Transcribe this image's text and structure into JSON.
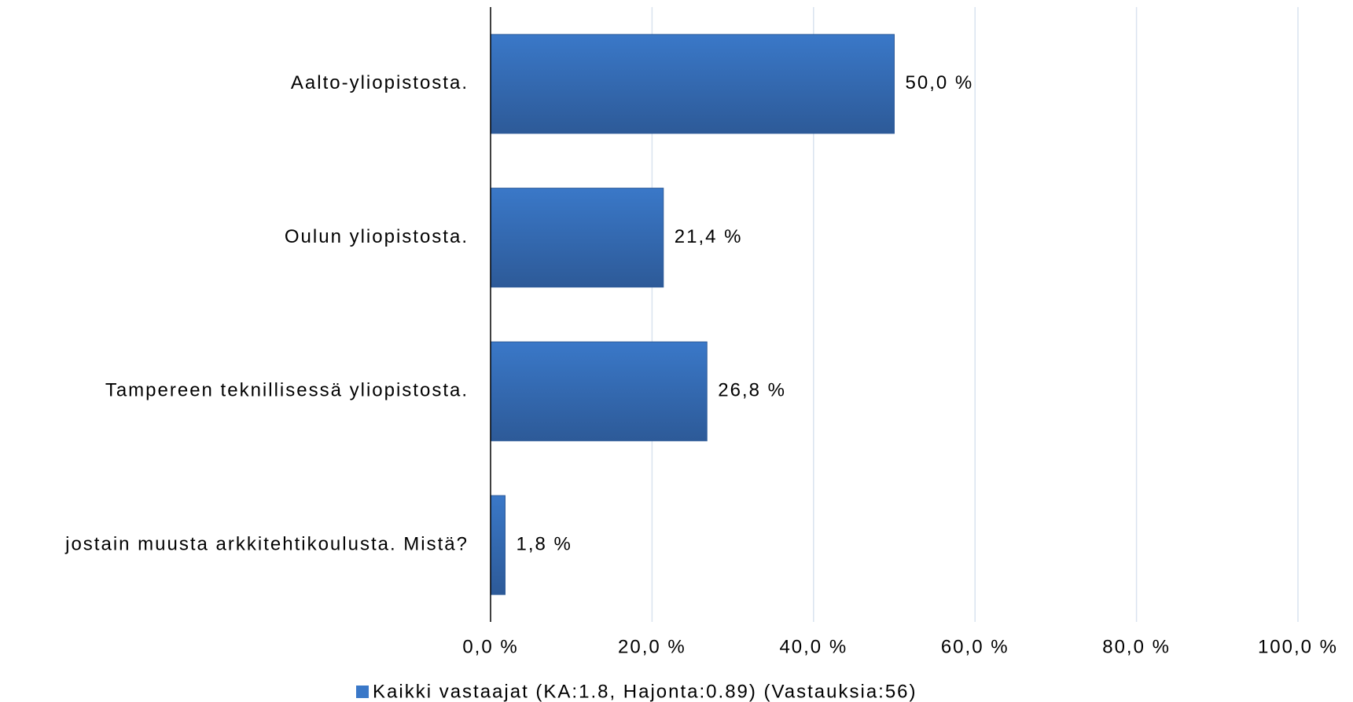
{
  "chart_data": {
    "type": "barh",
    "categories": [
      "Aalto-yliopistosta.",
      "Oulun yliopistosta.",
      "Tampereen teknillisessä yliopistosta.",
      "jostain muusta arkkitehtikoulusta. Mistä?"
    ],
    "series": [
      {
        "name": "Kaikki vastaajat (KA:1.8, Hajonta:0.89) (Vastauksia:56)",
        "color": "#3a78c8",
        "values": [
          50.0,
          21.4,
          26.8,
          1.8
        ],
        "value_labels": [
          "50,0 %",
          "21,4 %",
          "26,8 %",
          "1,8 %"
        ]
      }
    ],
    "xlim": [
      0,
      100
    ],
    "xticks": [
      {
        "value": 0,
        "label": "0,0 %"
      },
      {
        "value": 20,
        "label": "20,0 %"
      },
      {
        "value": 40,
        "label": "40,0 %"
      },
      {
        "value": 60,
        "label": "60,0 %"
      },
      {
        "value": 80,
        "label": "80,0 %"
      },
      {
        "value": 100,
        "label": "100,0 %"
      }
    ],
    "grid": true,
    "legend": "bottom"
  }
}
